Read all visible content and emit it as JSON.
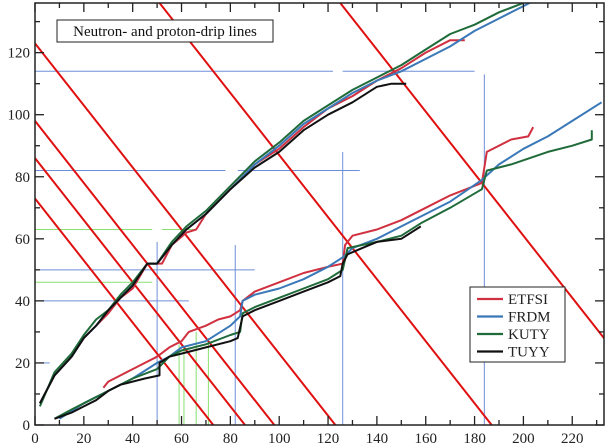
{
  "chart_data": {
    "type": "line",
    "title": "Neutron- and proton-drip lines",
    "xlabel": "",
    "ylabel": "",
    "xlim": [
      0,
      233
    ],
    "ylim": [
      0,
      136
    ],
    "xticks": [
      0,
      20,
      40,
      60,
      80,
      100,
      120,
      140,
      160,
      180,
      200,
      220
    ],
    "yticks": [
      0,
      20,
      40,
      60,
      80,
      100,
      120
    ],
    "grid": false,
    "legend_position": "right-middle",
    "colors": {
      "ETFSI": "#d0303f",
      "FRDM": "#3a78b8",
      "KUTY": "#1f6b3a",
      "TUYY": "#111111",
      "constant_A": "#e01010",
      "magic_blue": "#6f8fd8",
      "magic_green": "#88e070"
    },
    "legend": [
      "ETFSI",
      "FRDM",
      "KUTY",
      "TUYY"
    ],
    "series": [
      {
        "name": "ETFSI",
        "segment": "proton-drip",
        "points": [
          [
            2,
            7
          ],
          [
            8,
            16
          ],
          [
            15,
            22
          ],
          [
            20,
            28
          ],
          [
            25,
            32
          ],
          [
            30,
            36
          ],
          [
            35,
            41
          ],
          [
            40,
            44
          ],
          [
            46,
            52
          ],
          [
            52,
            52
          ],
          [
            56,
            58
          ],
          [
            62,
            62
          ],
          [
            66,
            63
          ],
          [
            70,
            68
          ],
          [
            80,
            76
          ],
          [
            90,
            84
          ],
          [
            100,
            89
          ],
          [
            110,
            96
          ],
          [
            120,
            102
          ],
          [
            130,
            106
          ],
          [
            140,
            111
          ],
          [
            150,
            115
          ],
          [
            160,
            120
          ],
          [
            170,
            124
          ],
          [
            176,
            124
          ]
        ]
      },
      {
        "name": "FRDM",
        "segment": "proton-drip",
        "points": [
          [
            2,
            7
          ],
          [
            8,
            16
          ],
          [
            15,
            22
          ],
          [
            20,
            28
          ],
          [
            25,
            32
          ],
          [
            30,
            37
          ],
          [
            35,
            41
          ],
          [
            40,
            45
          ],
          [
            46,
            52
          ],
          [
            50,
            52
          ],
          [
            56,
            58
          ],
          [
            62,
            63
          ],
          [
            70,
            68
          ],
          [
            80,
            76
          ],
          [
            90,
            84
          ],
          [
            100,
            90
          ],
          [
            110,
            97
          ],
          [
            120,
            102
          ],
          [
            130,
            107
          ],
          [
            140,
            111
          ],
          [
            150,
            114
          ],
          [
            160,
            118
          ],
          [
            170,
            122
          ],
          [
            180,
            127
          ],
          [
            190,
            131
          ],
          [
            200,
            135
          ],
          [
            205,
            137
          ]
        ]
      },
      {
        "name": "KUTY",
        "segment": "proton-drip",
        "points": [
          [
            2,
            6
          ],
          [
            8,
            17
          ],
          [
            15,
            23
          ],
          [
            20,
            29
          ],
          [
            25,
            34
          ],
          [
            30,
            37
          ],
          [
            35,
            42
          ],
          [
            40,
            46
          ],
          [
            46,
            52
          ],
          [
            50,
            52
          ],
          [
            56,
            59
          ],
          [
            62,
            64
          ],
          [
            70,
            69
          ],
          [
            80,
            77
          ],
          [
            90,
            85
          ],
          [
            100,
            91
          ],
          [
            110,
            98
          ],
          [
            120,
            103
          ],
          [
            130,
            108
          ],
          [
            140,
            112
          ],
          [
            150,
            116
          ],
          [
            160,
            121
          ],
          [
            170,
            126
          ],
          [
            180,
            129
          ],
          [
            190,
            133
          ],
          [
            200,
            136
          ]
        ]
      },
      {
        "name": "TUYY",
        "segment": "proton-drip",
        "points": [
          [
            2,
            7
          ],
          [
            8,
            16
          ],
          [
            15,
            22
          ],
          [
            20,
            28
          ],
          [
            25,
            32
          ],
          [
            30,
            37
          ],
          [
            35,
            41
          ],
          [
            40,
            45
          ],
          [
            46,
            52
          ],
          [
            50,
            52
          ],
          [
            56,
            58
          ],
          [
            62,
            63
          ],
          [
            70,
            68
          ],
          [
            80,
            76
          ],
          [
            90,
            83
          ],
          [
            100,
            88
          ],
          [
            110,
            95
          ],
          [
            120,
            100
          ],
          [
            130,
            104
          ],
          [
            140,
            109
          ],
          [
            146,
            110
          ],
          [
            152,
            110
          ]
        ]
      },
      {
        "name": "ETFSI",
        "segment": "neutron-drip",
        "points": [
          [
            28,
            12
          ],
          [
            30,
            14
          ],
          [
            35,
            16
          ],
          [
            40,
            18
          ],
          [
            45,
            20
          ],
          [
            50,
            22
          ],
          [
            55,
            25
          ],
          [
            60,
            27
          ],
          [
            63,
            30
          ],
          [
            70,
            32
          ],
          [
            75,
            34
          ],
          [
            80,
            35
          ],
          [
            84,
            37
          ],
          [
            85,
            40
          ],
          [
            90,
            43
          ],
          [
            100,
            46
          ],
          [
            110,
            49
          ],
          [
            120,
            51
          ],
          [
            126,
            52
          ],
          [
            127,
            58
          ],
          [
            130,
            61
          ],
          [
            140,
            63
          ],
          [
            150,
            66
          ],
          [
            160,
            70
          ],
          [
            170,
            74
          ],
          [
            183,
            78
          ],
          [
            185,
            88
          ],
          [
            195,
            92
          ],
          [
            202,
            93
          ],
          [
            204,
            96
          ]
        ]
      },
      {
        "name": "FRDM",
        "segment": "neutron-drip",
        "points": [
          [
            10,
            2
          ],
          [
            20,
            7
          ],
          [
            30,
            11
          ],
          [
            40,
            15
          ],
          [
            50,
            20
          ],
          [
            55,
            22
          ],
          [
            60,
            25
          ],
          [
            70,
            27
          ],
          [
            80,
            32
          ],
          [
            84,
            35
          ],
          [
            85,
            40
          ],
          [
            90,
            42
          ],
          [
            100,
            44
          ],
          [
            110,
            47
          ],
          [
            120,
            51
          ],
          [
            126,
            54
          ],
          [
            130,
            57
          ],
          [
            140,
            60
          ],
          [
            150,
            64
          ],
          [
            160,
            68
          ],
          [
            170,
            72
          ],
          [
            183,
            79
          ],
          [
            190,
            84
          ],
          [
            200,
            89
          ],
          [
            210,
            93
          ],
          [
            220,
            98
          ],
          [
            232,
            104
          ]
        ]
      },
      {
        "name": "KUTY",
        "segment": "neutron-drip",
        "points": [
          [
            8,
            2
          ],
          [
            15,
            5
          ],
          [
            20,
            7
          ],
          [
            30,
            11
          ],
          [
            40,
            15
          ],
          [
            50,
            18
          ],
          [
            55,
            22
          ],
          [
            60,
            24
          ],
          [
            70,
            26
          ],
          [
            80,
            29
          ],
          [
            84,
            30
          ],
          [
            85,
            36
          ],
          [
            90,
            38
          ],
          [
            100,
            41
          ],
          [
            110,
            44
          ],
          [
            120,
            47
          ],
          [
            126,
            50
          ],
          [
            128,
            57
          ],
          [
            134,
            58
          ],
          [
            140,
            59
          ],
          [
            150,
            61
          ],
          [
            158,
            65
          ],
          [
            170,
            70
          ],
          [
            183,
            76
          ],
          [
            185,
            82
          ],
          [
            195,
            84
          ],
          [
            210,
            88
          ],
          [
            220,
            90
          ],
          [
            228,
            92
          ],
          [
            228,
            95
          ]
        ]
      },
      {
        "name": "TUYY",
        "segment": "neutron-drip",
        "points": [
          [
            8,
            2
          ],
          [
            15,
            4
          ],
          [
            20,
            6
          ],
          [
            25,
            8
          ],
          [
            30,
            11
          ],
          [
            35,
            13
          ],
          [
            45,
            15
          ],
          [
            51,
            16
          ],
          [
            51,
            20
          ],
          [
            55,
            22
          ],
          [
            60,
            23
          ],
          [
            70,
            25
          ],
          [
            80,
            27
          ],
          [
            83,
            28
          ],
          [
            85,
            35
          ],
          [
            90,
            37
          ],
          [
            100,
            40
          ],
          [
            110,
            43
          ],
          [
            120,
            46
          ],
          [
            125,
            48
          ],
          [
            126,
            52
          ],
          [
            128,
            55
          ],
          [
            134,
            57
          ],
          [
            140,
            59
          ],
          [
            150,
            60
          ],
          [
            158,
            64
          ]
        ]
      }
    ],
    "constant_A_lines": [
      73,
      86,
      98,
      123,
      187,
      261
    ],
    "guide_lines_blue": {
      "horizontal": [
        {
          "y": 114,
          "x": [
            0,
            122
          ]
        },
        {
          "y": 114,
          "x": [
            126,
            180
          ]
        },
        {
          "y": 82,
          "x": [
            0,
            78
          ]
        },
        {
          "y": 82,
          "x": [
            83,
            133
          ]
        },
        {
          "y": 50,
          "x": [
            0,
            90
          ]
        },
        {
          "y": 40,
          "x": [
            0,
            63
          ]
        },
        {
          "y": 20,
          "x": [
            2,
            6
          ]
        }
      ],
      "vertical": [
        {
          "x": 50,
          "y": [
            0,
            59
          ]
        },
        {
          "x": 82,
          "y": [
            0,
            58
          ]
        },
        {
          "x": 126,
          "y": [
            0,
            88
          ]
        },
        {
          "x": 184,
          "y": [
            0,
            113
          ]
        }
      ]
    },
    "guide_lines_green": {
      "horizontal": [
        {
          "y": 63,
          "x": [
            0,
            48
          ]
        },
        {
          "y": 63,
          "x": [
            52,
            66
          ]
        },
        {
          "y": 46,
          "x": [
            0,
            48
          ]
        }
      ],
      "vertical": [
        {
          "x": 59,
          "y": [
            0,
            26
          ]
        },
        {
          "x": 61,
          "y": [
            0,
            25
          ]
        },
        {
          "x": 66,
          "y": [
            0,
            30
          ]
        },
        {
          "x": 71,
          "y": [
            0,
            28
          ]
        }
      ]
    }
  }
}
